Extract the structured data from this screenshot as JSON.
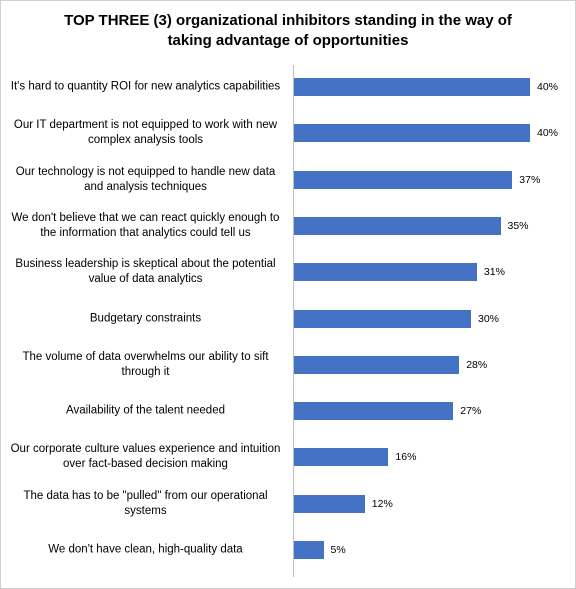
{
  "chart_data": {
    "type": "bar",
    "orientation": "horizontal",
    "title": "TOP THREE (3) organizational inhibitors standing in the way of taking advantage of opportunities",
    "categories": [
      "It's hard to quantity ROI for new analytics capabilities",
      "Our IT department is not equipped to work with new complex analysis tools",
      "Our technology is not equipped to handle new data and analysis techniques",
      "We don't believe that we can react quickly enough to the information that analytics could tell us",
      "Business leadership is skeptical about the potential value of data analytics",
      "Budgetary constraints",
      "The volume of data overwhelms our ability to sift through it",
      "Availability of the talent needed",
      "Our corporate culture values experience and intuition over fact-based decision making",
      "The data has to be \"pulled\" from our operational systems",
      "We don't have clean, high-quality data"
    ],
    "values": [
      40,
      40,
      37,
      35,
      31,
      30,
      28,
      27,
      16,
      12,
      5
    ],
    "value_labels": [
      "40%",
      "40%",
      "37%",
      "35%",
      "31%",
      "30%",
      "28%",
      "27%",
      "16%",
      "12%",
      "5%"
    ],
    "color": "#4472c4"
  }
}
